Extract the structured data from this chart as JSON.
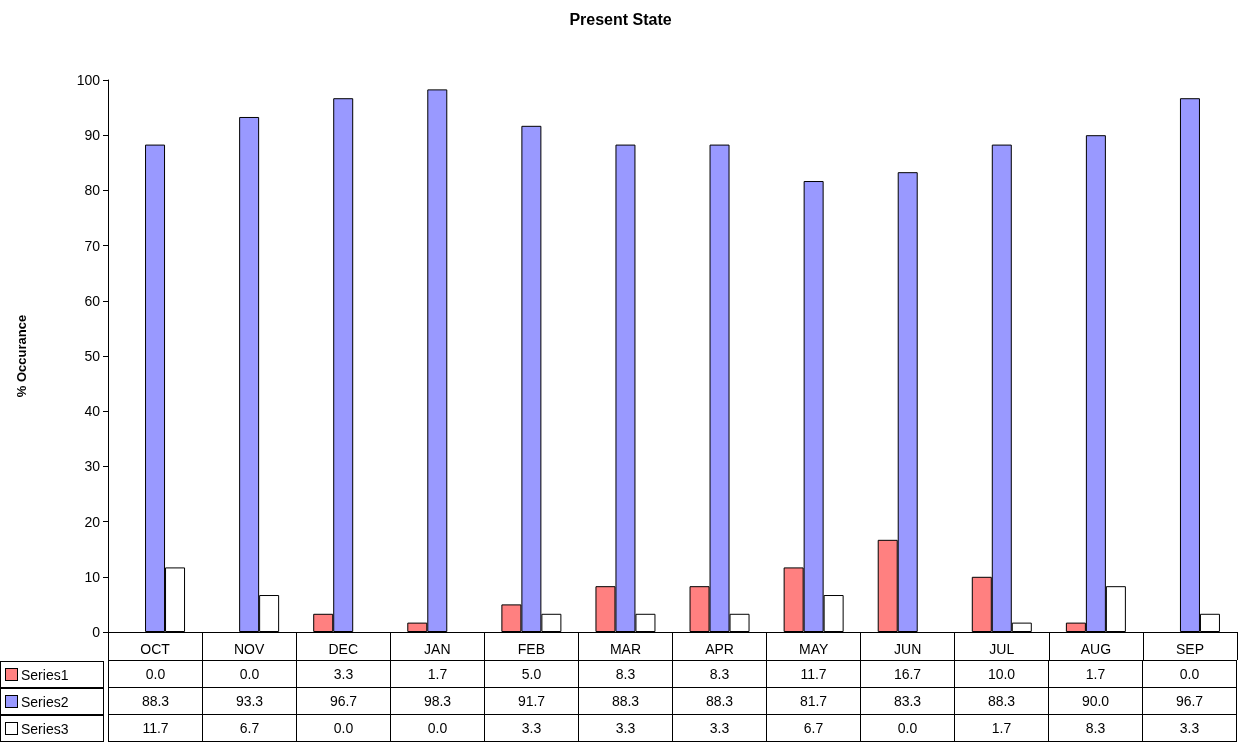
{
  "chart_data": {
    "type": "bar",
    "title": "Present State",
    "ylabel": "% Occurance",
    "categories": [
      "OCT",
      "NOV",
      "DEC",
      "JAN",
      "FEB",
      "MAR",
      "APR",
      "MAY",
      "JUN",
      "JUL",
      "AUG",
      "SEP"
    ],
    "series": [
      {
        "name": "Series1",
        "color": "#ff8080",
        "values": [
          0.0,
          0.0,
          3.3,
          1.7,
          5.0,
          8.3,
          8.3,
          11.7,
          16.7,
          10.0,
          1.7,
          0.0
        ],
        "value_labels": [
          "0.0",
          "0.0",
          "3.3",
          "1.7",
          "5.0",
          "8.3",
          "8.3",
          "11.7",
          "16.7",
          "10.0",
          "1.7",
          "0.0"
        ]
      },
      {
        "name": "Series2",
        "color": "#9999ff",
        "values": [
          88.3,
          93.3,
          96.7,
          98.3,
          91.7,
          88.3,
          88.3,
          81.7,
          83.3,
          88.3,
          90.0,
          96.7
        ],
        "value_labels": [
          "88.3",
          "93.3",
          "96.7",
          "98.3",
          "91.7",
          "88.3",
          "88.3",
          "81.7",
          "83.3",
          "88.3",
          "90.0",
          "96.7"
        ]
      },
      {
        "name": "Series3",
        "color": "#ffffff",
        "values": [
          11.7,
          6.7,
          0.0,
          0.0,
          3.3,
          3.3,
          3.3,
          6.7,
          0.0,
          1.7,
          8.3,
          3.3
        ],
        "value_labels": [
          "11.7",
          "6.7",
          "0.0",
          "0.0",
          "3.3",
          "3.3",
          "3.3",
          "6.7",
          "0.0",
          "1.7",
          "8.3",
          "3.3"
        ]
      }
    ],
    "ylim": [
      0,
      100
    ],
    "yticks": [
      0,
      10,
      20,
      30,
      40,
      50,
      60,
      70,
      80,
      90,
      100
    ],
    "grid": false,
    "legend": "bottom left"
  }
}
